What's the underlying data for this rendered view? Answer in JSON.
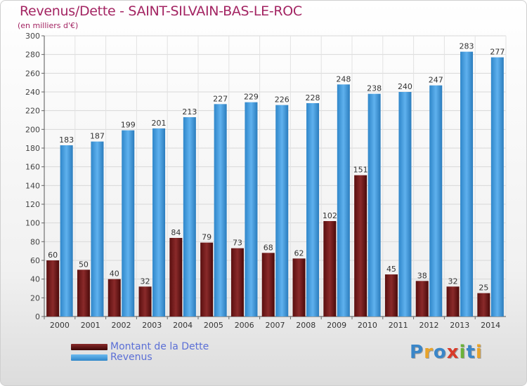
{
  "chart_data": {
    "type": "bar",
    "title": "Revenus/Dette - SAINT-SILVAIN-BAS-LE-ROC",
    "subtitle": "(en milliers d'€)",
    "categories": [
      "2000",
      "2001",
      "2002",
      "2003",
      "2004",
      "2005",
      "2006",
      "2007",
      "2008",
      "2009",
      "2010",
      "2011",
      "2012",
      "2013",
      "2014"
    ],
    "series": [
      {
        "name": "Montant de la Dette",
        "color": "#7a1f1f",
        "values": [
          60,
          50,
          40,
          32,
          84,
          79,
          73,
          68,
          62,
          102,
          151,
          45,
          38,
          32,
          25
        ]
      },
      {
        "name": "Revenus",
        "color": "#4aa0e0",
        "values": [
          183,
          187,
          199,
          201,
          213,
          227,
          229,
          226,
          228,
          248,
          238,
          240,
          247,
          283,
          277
        ]
      }
    ],
    "ylim": [
      0,
      300
    ],
    "yticks": [
      0,
      20,
      40,
      60,
      80,
      100,
      120,
      140,
      160,
      180,
      200,
      220,
      240,
      260,
      280,
      300
    ],
    "grid": true,
    "legend_position": "bottom-left"
  },
  "logo": {
    "text": "Proxiti",
    "colors": [
      "#3a86c8",
      "#e8a32a",
      "#3a86c8",
      "#d83b2a",
      "#6bb23a",
      "#3a86c8",
      "#e8a32a"
    ]
  }
}
